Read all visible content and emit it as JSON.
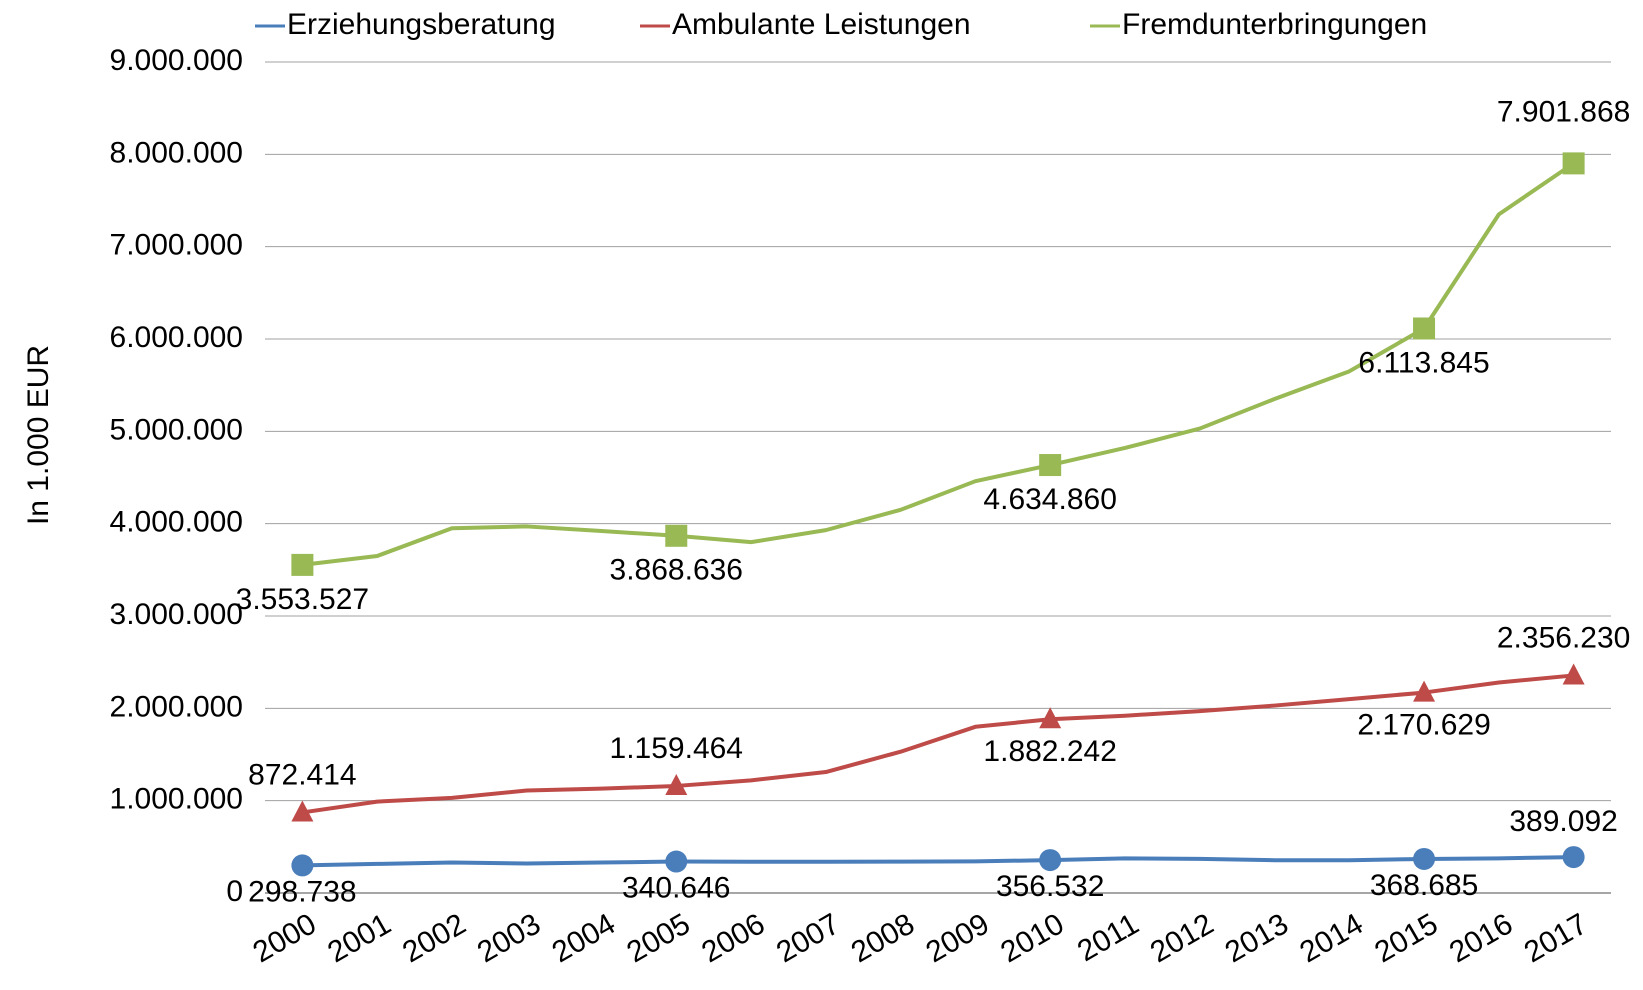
{
  "chart_data": {
    "type": "line",
    "y_label": "In 1.000 EUR",
    "categories": [
      "2000",
      "2001",
      "2002",
      "2003",
      "2004",
      "2005",
      "2006",
      "2007",
      "2008",
      "2009",
      "2010",
      "2011",
      "2012",
      "2013",
      "2014",
      "2015",
      "2016",
      "2017"
    ],
    "series": [
      {
        "name": "Erziehungsberatung",
        "color": "#4a7ebb",
        "marker": "circle",
        "values": [
          298738,
          315000,
          330000,
          320000,
          330000,
          340646,
          338000,
          338000,
          340000,
          342000,
          356532,
          375000,
          370000,
          355000,
          355000,
          368685,
          375000,
          389092
        ],
        "value_labels": [
          "298.738",
          null,
          null,
          null,
          null,
          "340.646",
          null,
          null,
          null,
          null,
          "356.532",
          null,
          null,
          null,
          null,
          "368.685",
          null,
          "389.092"
        ]
      },
      {
        "name": "Ambulante Leistungen",
        "color": "#be4b48",
        "marker": "triangle",
        "values": [
          872414,
          990000,
          1030000,
          1110000,
          1130000,
          1159464,
          1220000,
          1310000,
          1530000,
          1800000,
          1882242,
          1920000,
          1970000,
          2030000,
          2100000,
          2170629,
          2280000,
          2356230
        ],
        "value_labels": [
          "872.414",
          null,
          null,
          null,
          null,
          "1.159.464",
          null,
          null,
          null,
          null,
          "1.882.242",
          null,
          null,
          null,
          null,
          "2.170.629",
          null,
          "2.356.230"
        ]
      },
      {
        "name": "Fremdunterbringungen",
        "color": "#98b954",
        "marker": "square",
        "values": [
          3553527,
          3650000,
          3950000,
          3970000,
          3920000,
          3868636,
          3800000,
          3930000,
          4150000,
          4460000,
          4634860,
          4820000,
          5030000,
          5350000,
          5650000,
          6113845,
          7350000,
          7901868
        ],
        "value_labels": [
          "3.553.527",
          null,
          null,
          null,
          null,
          "3.868.636",
          null,
          null,
          null,
          null,
          "4.634.860",
          null,
          null,
          null,
          null,
          "6.113.845",
          null,
          "7.901.868"
        ]
      }
    ],
    "ylim": [
      0,
      9000000
    ],
    "yticks": [
      0,
      {
        "value": 1000000,
        "label": "1.000.000"
      },
      {
        "value": 2000000,
        "label": "2.000.000"
      },
      {
        "value": 3000000,
        "label": "3.000.000"
      },
      {
        "value": 4000000,
        "label": "4.000.000"
      },
      {
        "value": 5000000,
        "label": "5.000.000"
      },
      {
        "value": 6000000,
        "label": "6.000.000"
      },
      {
        "value": 7000000,
        "label": "7.000.000"
      },
      {
        "value": 8000000,
        "label": "8.000.000"
      },
      {
        "value": 9000000,
        "label": "9.000.000"
      }
    ],
    "grid": true,
    "legend": "top"
  }
}
